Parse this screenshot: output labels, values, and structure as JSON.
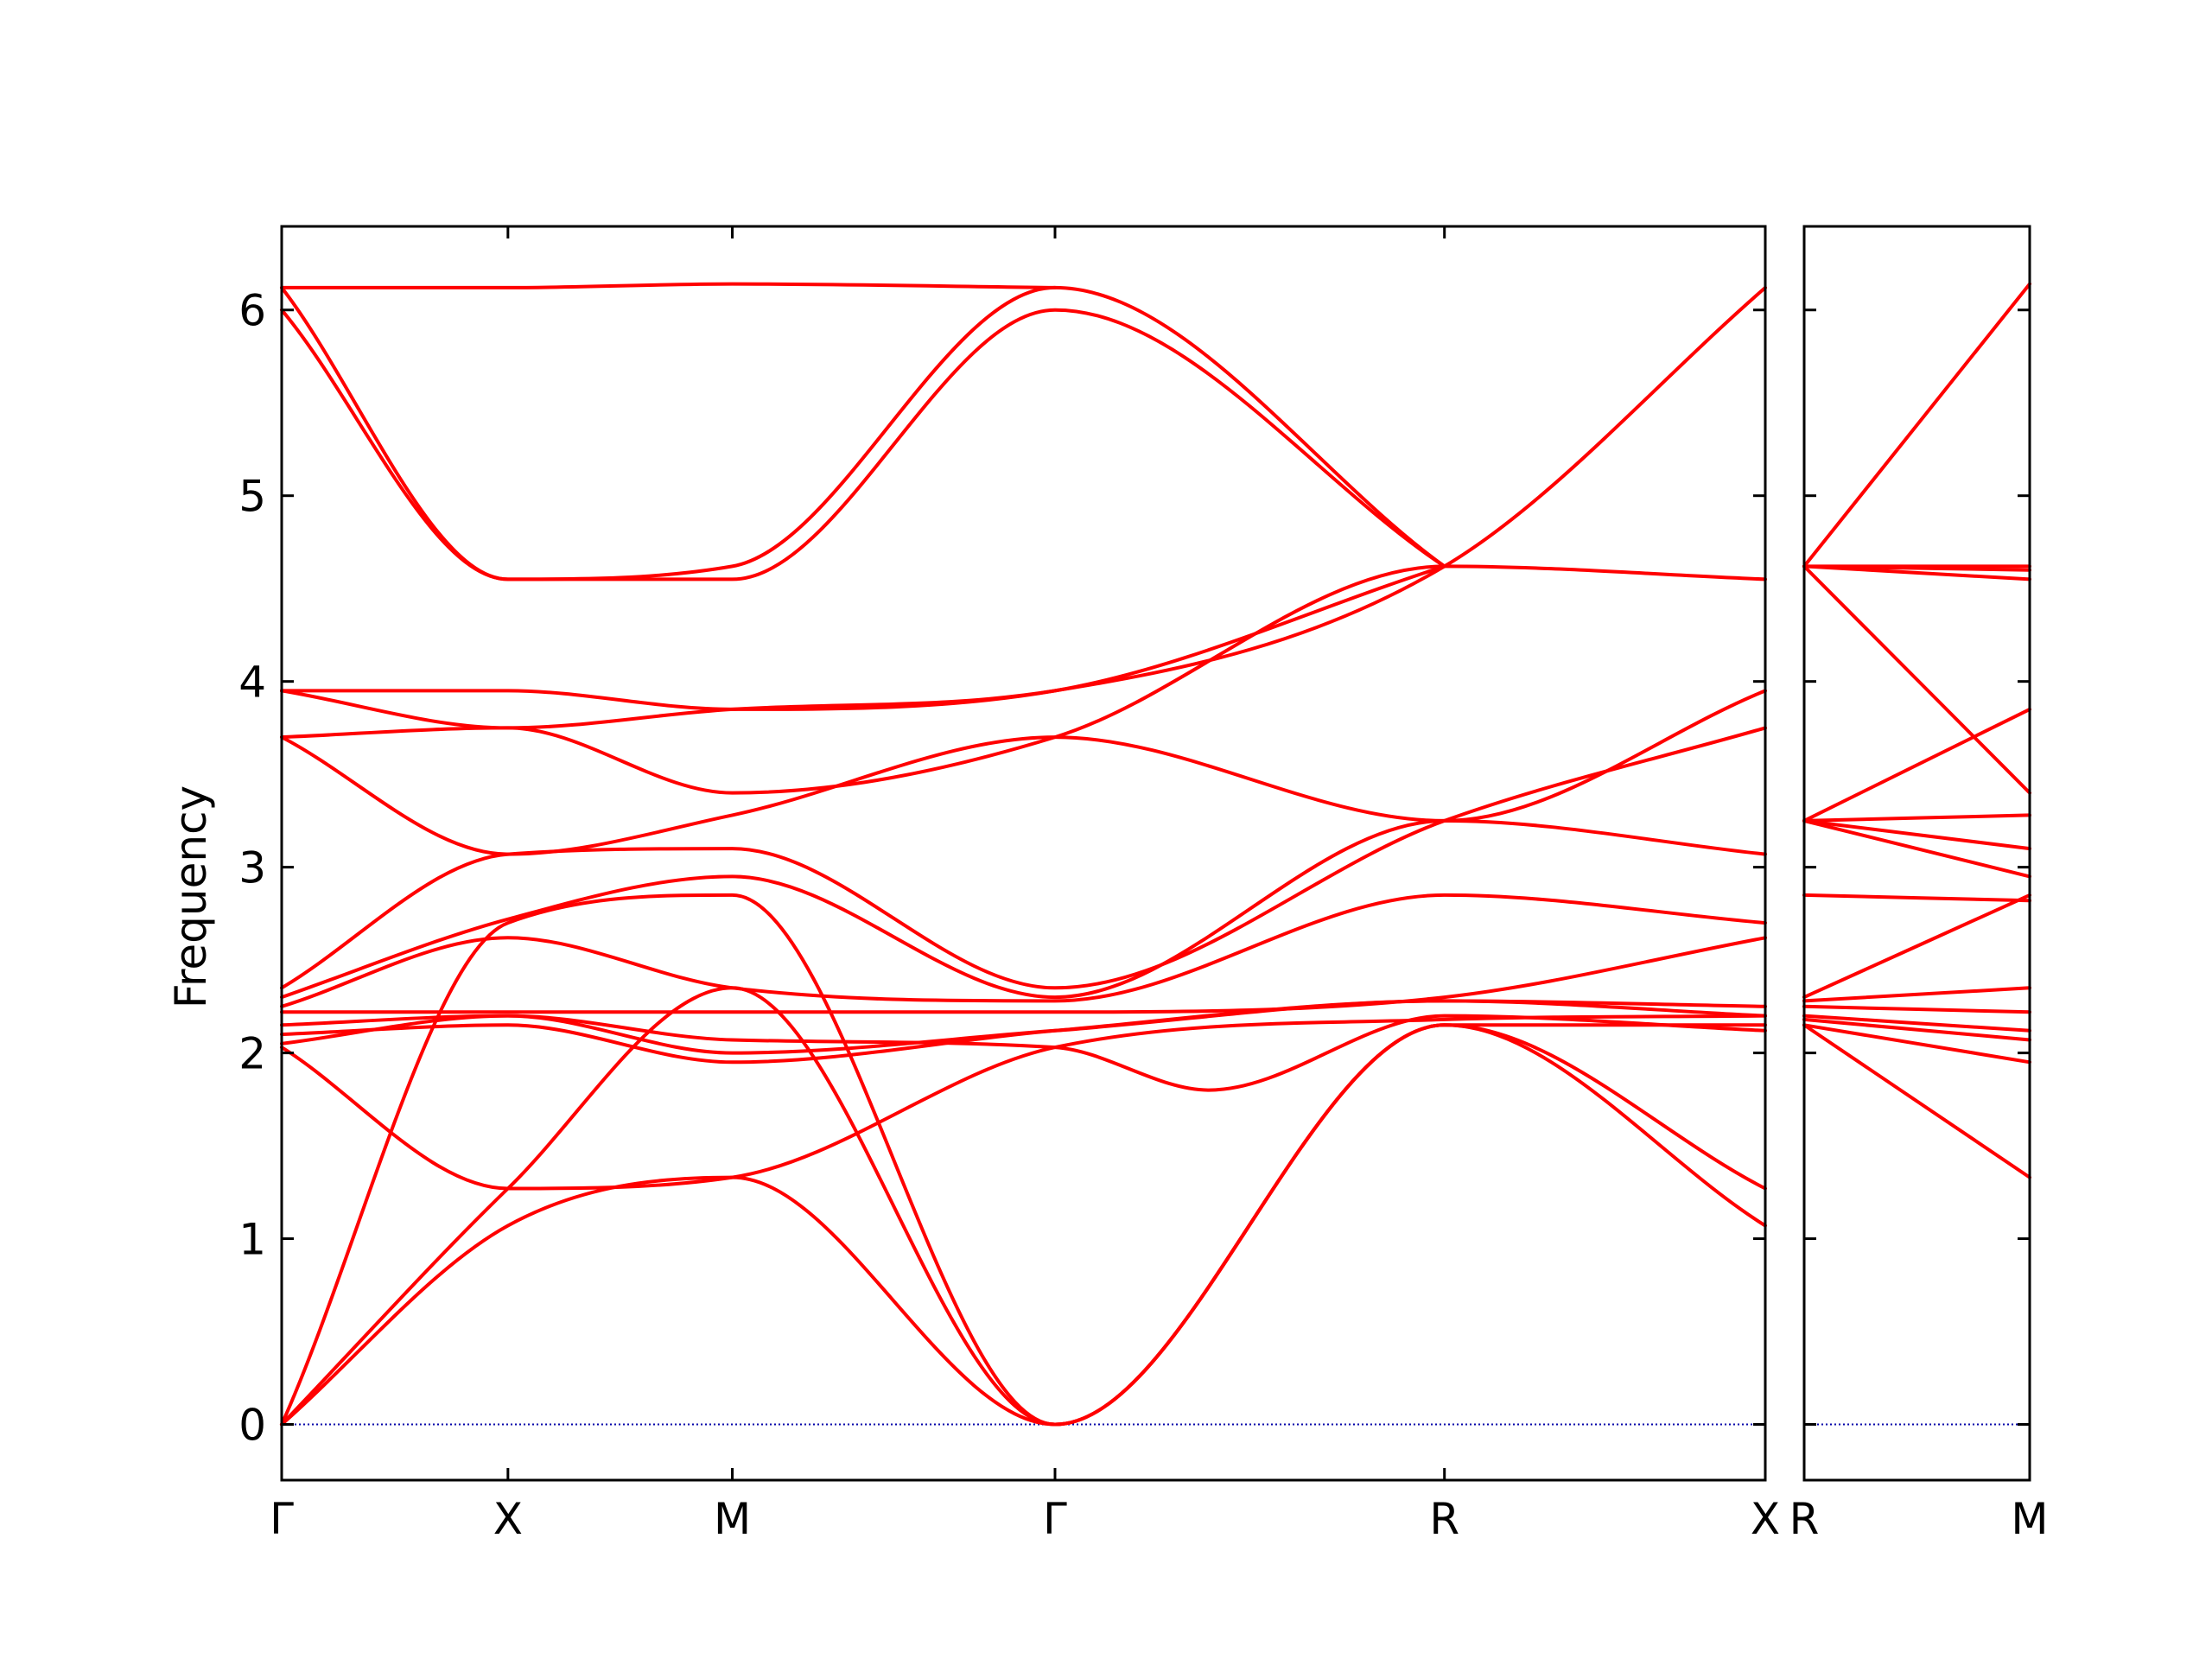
{
  "chart_data": {
    "type": "line",
    "title": "",
    "ylabel": "Frequency",
    "xlabel": "",
    "ylim": [
      -0.3,
      6.45
    ],
    "yticks": [
      0,
      1,
      2,
      3,
      4,
      5,
      6
    ],
    "grid": false,
    "legend": "none",
    "line_color": "#ff0000",
    "zero_line_color": "#0000aa",
    "segments": [
      {
        "xlim": [
          0,
          8
        ],
        "ticks": [
          {
            "x": 0,
            "label": "Γ"
          },
          {
            "x": 1.22,
            "label": "X"
          },
          {
            "x": 2.43,
            "label": "M"
          },
          {
            "x": 4.17,
            "label": "Γ"
          },
          {
            "x": 6.27,
            "label": "R"
          },
          {
            "x": 8,
            "label": "X"
          }
        ],
        "bands": [
          {
            "x": [
              0,
              1.22,
              2.43,
              4.17,
              6.27,
              8
            ],
            "y": [
              0,
              1.07,
              1.33,
              0,
              2.15,
              1.07
            ]
          },
          {
            "x": [
              0,
              1.22,
              2.43,
              4.17,
              6.27,
              8
            ],
            "y": [
              0,
              1.27,
              2.35,
              0,
              2.15,
              1.27
            ]
          },
          {
            "x": [
              0,
              1.22,
              2.43,
              4.17,
              6.27,
              8
            ],
            "y": [
              0,
              2.7,
              2.85,
              0,
              2.15,
              2.15
            ]
          },
          {
            "x": [
              0,
              1.22,
              2.43,
              4.17,
              6.27,
              8
            ],
            "y": [
              2.03,
              1.27,
              1.33,
              2.03,
              2.18,
              2.2
            ]
          },
          {
            "x": [
              0,
              1.22,
              2.43,
              4.17,
              5.0,
              6.27,
              8
            ],
            "y": [
              2.05,
              2.2,
              2.07,
              2.03,
              1.8,
              2.2,
              2.12
            ]
          },
          {
            "x": [
              0,
              1.22,
              2.43,
              4.17,
              6.27,
              8
            ],
            "y": [
              2.1,
              2.15,
              1.95,
              2.12,
              2.28,
              2.2
            ]
          },
          {
            "x": [
              0,
              1.22,
              2.43,
              4.17,
              6.27,
              8
            ],
            "y": [
              2.15,
              2.2,
              2.0,
              2.12,
              2.28,
              2.25
            ]
          },
          {
            "x": [
              0,
              1.22,
              2.43,
              4.17,
              6.27,
              8
            ],
            "y": [
              2.22,
              2.22,
              2.22,
              2.22,
              2.3,
              2.62
            ]
          },
          {
            "x": [
              0,
              1.22,
              2.43,
              4.17,
              6.27,
              8
            ],
            "y": [
              2.25,
              2.62,
              2.35,
              2.28,
              2.85,
              2.7
            ]
          },
          {
            "x": [
              0,
              1.22,
              2.43,
              4.17,
              6.27,
              8
            ],
            "y": [
              2.3,
              2.72,
              2.95,
              2.3,
              3.25,
              3.07
            ]
          },
          {
            "x": [
              0,
              1.22,
              2.43,
              4.17,
              6.27,
              8
            ],
            "y": [
              2.35,
              3.07,
              3.1,
              2.35,
              3.25,
              3.75
            ]
          },
          {
            "x": [
              0,
              1.22,
              2.43,
              4.17,
              6.27,
              8
            ],
            "y": [
              3.7,
              3.07,
              3.28,
              3.7,
              3.25,
              3.95
            ]
          },
          {
            "x": [
              0,
              1.22,
              2.43,
              4.17,
              6.27,
              8
            ],
            "y": [
              3.7,
              3.75,
              3.4,
              3.7,
              4.62,
              4.55
            ]
          },
          {
            "x": [
              0,
              1.22,
              2.43,
              4.17,
              6.27,
              8
            ],
            "y": [
              3.95,
              3.75,
              3.85,
              3.95,
              4.62,
              6.12
            ]
          },
          {
            "x": [
              0,
              1.22,
              2.43,
              4.17,
              6.27
            ],
            "y": [
              3.95,
              3.95,
              3.85,
              3.95,
              4.62
            ]
          },
          {
            "x": [
              0,
              1.22,
              2.43,
              4.17,
              6.27
            ],
            "y": [
              6.0,
              4.55,
              4.55,
              6.0,
              4.62
            ]
          },
          {
            "x": [
              0,
              1.22,
              2.43,
              4.17,
              6.27
            ],
            "y": [
              6.12,
              4.55,
              4.62,
              6.12,
              4.62
            ]
          },
          {
            "x": [
              0,
              1.22,
              2.43,
              4.17
            ],
            "y": [
              6.12,
              6.12,
              6.14,
              6.12
            ]
          }
        ]
      },
      {
        "xlim": [
          0,
          1
        ],
        "ticks": [
          {
            "x": 0,
            "label": "R"
          },
          {
            "x": 1,
            "label": "M"
          }
        ],
        "bands": [
          {
            "x": [
              0,
              1
            ],
            "y": [
              2.15,
              1.33
            ]
          },
          {
            "x": [
              0,
              1
            ],
            "y": [
              2.15,
              1.95
            ]
          },
          {
            "x": [
              0,
              1
            ],
            "y": [
              2.18,
              2.07
            ]
          },
          {
            "x": [
              0,
              1
            ],
            "y": [
              2.2,
              2.12
            ]
          },
          {
            "x": [
              0,
              1
            ],
            "y": [
              2.25,
              2.22
            ]
          },
          {
            "x": [
              0,
              1
            ],
            "y": [
              2.28,
              2.35
            ]
          },
          {
            "x": [
              0,
              1
            ],
            "y": [
              2.3,
              2.85
            ]
          },
          {
            "x": [
              0,
              1
            ],
            "y": [
              2.85,
              2.82
            ]
          },
          {
            "x": [
              0,
              1
            ],
            "y": [
              3.25,
              2.95
            ]
          },
          {
            "x": [
              0,
              1
            ],
            "y": [
              3.25,
              3.1
            ]
          },
          {
            "x": [
              0,
              1
            ],
            "y": [
              3.25,
              3.28
            ]
          },
          {
            "x": [
              0,
              1
            ],
            "y": [
              3.25,
              3.85
            ]
          },
          {
            "x": [
              0,
              1
            ],
            "y": [
              4.62,
              3.4
            ]
          },
          {
            "x": [
              0,
              1
            ],
            "y": [
              4.62,
              4.55
            ]
          },
          {
            "x": [
              0,
              1
            ],
            "y": [
              4.62,
              4.6
            ]
          },
          {
            "x": [
              0,
              1
            ],
            "y": [
              4.62,
              4.62
            ]
          },
          {
            "x": [
              0,
              1
            ],
            "y": [
              4.62,
              6.14
            ]
          }
        ]
      }
    ]
  }
}
